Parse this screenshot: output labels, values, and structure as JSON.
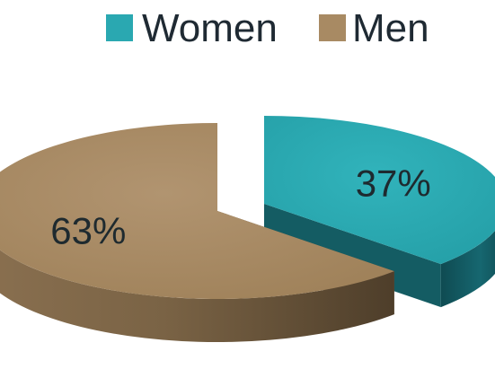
{
  "chart_data": {
    "type": "pie",
    "style": "3d-exploded",
    "legend_position": "top",
    "series": [
      {
        "name": "",
        "slices": [
          {
            "label": "Women",
            "value": 37,
            "display": "37%",
            "color": "#2aa8b1",
            "side_color": "#145c63"
          },
          {
            "label": "Men",
            "value": 63,
            "display": "63%",
            "color": "#a88a63",
            "side_color": "#6b563c"
          }
        ]
      }
    ]
  }
}
